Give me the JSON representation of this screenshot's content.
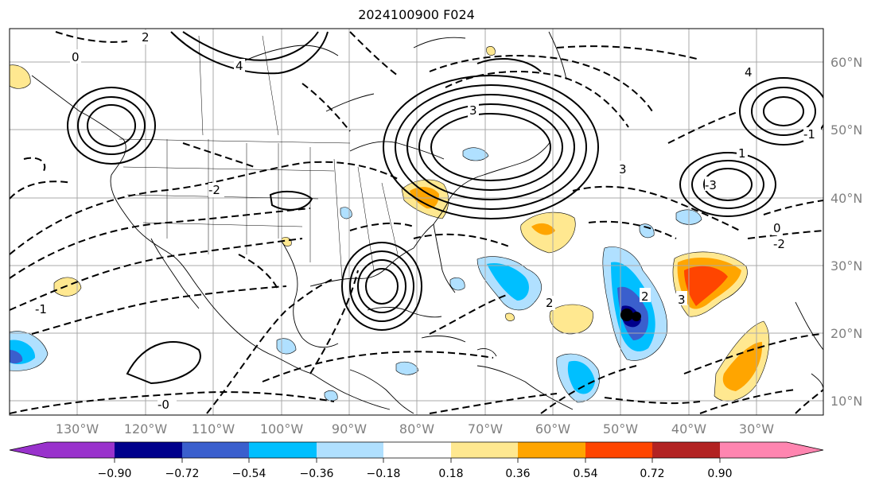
{
  "title": "2024100900 F024",
  "map": {
    "lon_labels": [
      "130°W",
      "120°W",
      "110°W",
      "100°W",
      "90°W",
      "80°W",
      "70°W",
      "60°W",
      "50°W",
      "40°W",
      "30°W"
    ],
    "lat_labels": [
      "60°N",
      "50°N",
      "40°N",
      "30°N",
      "20°N",
      "10°N"
    ],
    "contour_labels": [
      "0",
      "2",
      "3",
      "4",
      "-2",
      "-1",
      "-3",
      "1",
      "2",
      "3",
      "-2",
      "-0",
      "0",
      "2",
      "3",
      "4",
      "-1"
    ]
  },
  "colorbar": {
    "ticks": [
      "−0.90",
      "−0.72",
      "−0.54",
      "−0.36",
      "−0.18",
      "0.18",
      "0.36",
      "0.54",
      "0.72",
      "0.90"
    ],
    "colors": [
      "#9932cc",
      "#00008b",
      "#3a5fcd",
      "#00bfff",
      "#b0e0ff",
      "#ffffff",
      "#ffe890",
      "#ffa500",
      "#ff4500",
      "#b22222",
      "#ff85b0"
    ],
    "min_arrow_color": "#9932cc",
    "max_arrow_color": "#ff85b0"
  },
  "colors": {
    "tick_label": "#808080",
    "grid": "#a9a9a9"
  }
}
